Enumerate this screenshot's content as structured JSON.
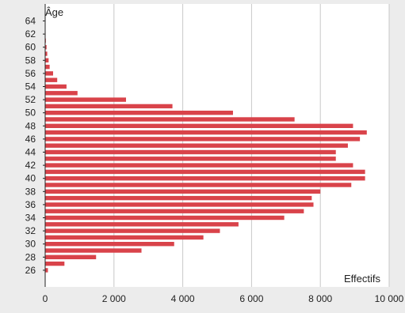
{
  "chart_data": {
    "type": "bar",
    "orientation": "horizontal",
    "ylabel": "Âge",
    "xlabel": "Effectifs",
    "xlim": [
      0,
      10000
    ],
    "x_ticks": [
      0,
      2000,
      4000,
      6000,
      8000,
      10000
    ],
    "x_tick_labels": [
      "0",
      "2 000",
      "4 000",
      "6 000",
      "8 000",
      "10 000"
    ],
    "y_ticks": [
      26,
      28,
      30,
      32,
      34,
      36,
      38,
      40,
      42,
      44,
      46,
      48,
      50,
      52,
      54,
      56,
      58,
      60,
      62,
      64
    ],
    "grid": "vertical",
    "bar_color": "#d9434a",
    "categories": [
      26,
      27,
      28,
      29,
      30,
      31,
      32,
      33,
      34,
      35,
      36,
      37,
      38,
      39,
      40,
      41,
      42,
      43,
      44,
      45,
      46,
      47,
      48,
      49,
      50,
      51,
      52,
      53,
      54,
      55,
      56,
      57,
      58,
      59,
      60,
      61,
      62,
      63,
      64
    ],
    "values": [
      80,
      560,
      1480,
      2800,
      3750,
      4600,
      5080,
      5620,
      6950,
      7520,
      7800,
      7750,
      8000,
      8900,
      9300,
      9300,
      8950,
      8450,
      8450,
      8800,
      9150,
      9350,
      8950,
      7250,
      5460,
      3700,
      2350,
      940,
      620,
      350,
      230,
      130,
      100,
      60,
      40,
      20,
      12,
      6,
      3
    ]
  }
}
